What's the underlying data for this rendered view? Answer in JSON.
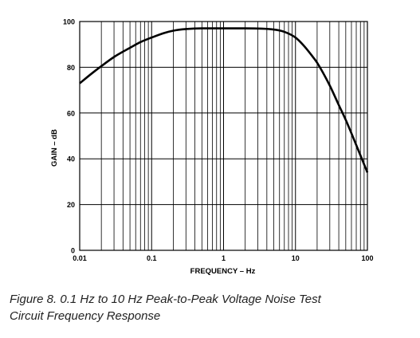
{
  "caption": {
    "line1": "Figure 8.  0.1 Hz to 10 Hz Peak-to-Peak Voltage Noise Test",
    "line2": "Circuit Frequency Response"
  },
  "chart_data": {
    "type": "line",
    "xlabel": "FREQUENCY – Hz",
    "ylabel": "GAIN – dB",
    "xscale": "log",
    "xlim": [
      0.01,
      100
    ],
    "ylim": [
      0,
      100
    ],
    "xticks": [
      "0.01",
      "0.1",
      "1",
      "10",
      "100"
    ],
    "yticks": [
      "0",
      "20",
      "40",
      "60",
      "80",
      "100"
    ],
    "grid": true,
    "series": [
      {
        "color": "#000000",
        "x": [
          0.01,
          0.015,
          0.02,
          0.03,
          0.05,
          0.07,
          0.1,
          0.15,
          0.2,
          0.3,
          0.5,
          1,
          2,
          5,
          7,
          10,
          13,
          17,
          20,
          30,
          40,
          50,
          70,
          100
        ],
        "y": [
          73,
          77.5,
          80.5,
          84.5,
          88.5,
          91,
          93,
          95,
          96,
          96.7,
          97,
          97,
          97,
          96.5,
          95.5,
          93,
          89.5,
          85,
          82,
          72,
          63.5,
          57,
          46,
          34
        ]
      }
    ]
  }
}
